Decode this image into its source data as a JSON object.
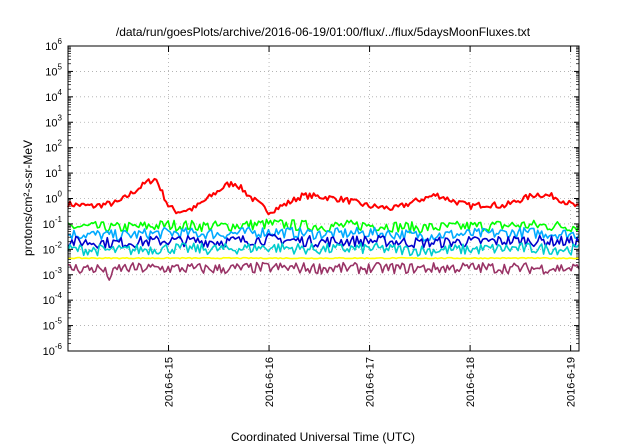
{
  "chart_data": {
    "type": "line",
    "title": "/data/run/goesPlots/archive/2016-06-19/01:00/flux/../flux/5daysMoonFluxes.txt",
    "xlabel": "Coordinated Universal Time (UTC)",
    "ylabel": "protons/cm²-s-sr-MeV",
    "yscale": "log",
    "ylim": [
      1e-06,
      1000000.0
    ],
    "xlim": [
      "2016-06-14 00:00",
      "2016-06-19 02:00"
    ],
    "y_ticks": [
      {
        "mantissa": "10",
        "exp": "-6"
      },
      {
        "mantissa": "10",
        "exp": "-5"
      },
      {
        "mantissa": "10",
        "exp": "-4"
      },
      {
        "mantissa": "10",
        "exp": "-3"
      },
      {
        "mantissa": "10",
        "exp": "-2"
      },
      {
        "mantissa": "10",
        "exp": "-1"
      },
      {
        "mantissa": "10",
        "exp": "0"
      },
      {
        "mantissa": "10",
        "exp": "1"
      },
      {
        "mantissa": "10",
        "exp": "2"
      },
      {
        "mantissa": "10",
        "exp": "3"
      },
      {
        "mantissa": "10",
        "exp": "4"
      },
      {
        "mantissa": "10",
        "exp": "5"
      },
      {
        "mantissa": "10",
        "exp": "6"
      }
    ],
    "x_ticks": [
      {
        "label": "2016-6-15",
        "date": "2016-06-15"
      },
      {
        "label": "2016-6-16",
        "date": "2016-06-16"
      },
      {
        "label": "2016-6-17",
        "date": "2016-06-17"
      },
      {
        "label": "2016-6-18",
        "date": "2016-06-18"
      },
      {
        "label": "2016-6-19",
        "date": "2016-06-19"
      }
    ],
    "grid": true,
    "legend": "none",
    "series": [
      {
        "color": "#ff0000",
        "x": [
          "2016-06-14 00:00",
          "2016-06-14 06:00",
          "2016-06-14 12:00",
          "2016-06-14 16:00",
          "2016-06-14 19:00",
          "2016-06-14 21:00",
          "2016-06-15 00:00",
          "2016-06-15 02:00",
          "2016-06-15 06:00",
          "2016-06-15 10:00",
          "2016-06-15 14:00",
          "2016-06-15 16:00",
          "2016-06-15 20:00",
          "2016-06-16 00:00",
          "2016-06-16 04:00",
          "2016-06-16 08:00",
          "2016-06-16 12:00",
          "2016-06-16 18:00",
          "2016-06-17 00:00",
          "2016-06-17 06:00",
          "2016-06-17 12:00",
          "2016-06-17 16:00",
          "2016-06-17 20:00",
          "2016-06-18 00:00",
          "2016-06-18 04:00",
          "2016-06-18 08:00",
          "2016-06-18 12:00",
          "2016-06-18 16:00",
          "2016-06-18 20:00",
          "2016-06-19 00:00",
          "2016-06-19 02:00"
        ],
        "y": [
          0.6,
          0.5,
          0.7,
          2.0,
          4.5,
          6.0,
          0.5,
          0.3,
          0.4,
          1.2,
          3.5,
          4.0,
          1.0,
          0.3,
          0.6,
          1.3,
          1.2,
          0.9,
          0.5,
          0.4,
          0.9,
          1.4,
          0.8,
          0.5,
          0.6,
          0.5,
          0.9,
          1.5,
          1.2,
          0.6,
          0.45
        ]
      },
      {
        "color": "#00ff00",
        "x": [
          "2016-06-14 00:00",
          "2016-06-14 12:00",
          "2016-06-15 00:00",
          "2016-06-15 12:00",
          "2016-06-16 00:00",
          "2016-06-16 12:00",
          "2016-06-17 00:00",
          "2016-06-17 12:00",
          "2016-06-18 00:00",
          "2016-06-18 12:00",
          "2016-06-19 00:00",
          "2016-06-19 02:00"
        ],
        "y": [
          0.08,
          0.07,
          0.09,
          0.08,
          0.1,
          0.08,
          0.09,
          0.07,
          0.08,
          0.09,
          0.08,
          0.08
        ]
      },
      {
        "color": "#00aaff",
        "x": [
          "2016-06-14 00:00",
          "2016-06-14 12:00",
          "2016-06-15 00:00",
          "2016-06-15 12:00",
          "2016-06-16 00:00",
          "2016-06-16 12:00",
          "2016-06-17 00:00",
          "2016-06-17 12:00",
          "2016-06-18 00:00",
          "2016-06-18 12:00",
          "2016-06-19 00:00",
          "2016-06-19 02:00"
        ],
        "y": [
          0.04,
          0.035,
          0.045,
          0.04,
          0.05,
          0.04,
          0.045,
          0.035,
          0.04,
          0.045,
          0.04,
          0.04
        ]
      },
      {
        "color": "#0000cc",
        "x": [
          "2016-06-14 00:00",
          "2016-06-14 12:00",
          "2016-06-15 00:00",
          "2016-06-15 12:00",
          "2016-06-16 00:00",
          "2016-06-16 12:00",
          "2016-06-17 00:00",
          "2016-06-17 12:00",
          "2016-06-18 00:00",
          "2016-06-18 12:00",
          "2016-06-19 00:00",
          "2016-06-19 02:00"
        ],
        "y": [
          0.02,
          0.018,
          0.022,
          0.02,
          0.025,
          0.02,
          0.022,
          0.018,
          0.02,
          0.022,
          0.02,
          0.02
        ]
      },
      {
        "color": "#00cccc",
        "x": [
          "2016-06-14 00:00",
          "2016-06-14 12:00",
          "2016-06-15 00:00",
          "2016-06-15 12:00",
          "2016-06-16 00:00",
          "2016-06-16 12:00",
          "2016-06-17 00:00",
          "2016-06-17 12:00",
          "2016-06-18 00:00",
          "2016-06-18 12:00",
          "2016-06-19 00:00",
          "2016-06-19 02:00"
        ],
        "y": [
          0.01,
          0.009,
          0.011,
          0.01,
          0.012,
          0.01,
          0.011,
          0.009,
          0.01,
          0.011,
          0.01,
          0.01
        ]
      },
      {
        "color": "#ffff00",
        "x": [
          "2016-06-14 00:00",
          "2016-06-15 00:00",
          "2016-06-16 00:00",
          "2016-06-17 00:00",
          "2016-06-18 00:00",
          "2016-06-19 00:00",
          "2016-06-19 02:00"
        ],
        "y": [
          0.0045,
          0.0045,
          0.0045,
          0.0045,
          0.0045,
          0.0045,
          0.0045
        ]
      },
      {
        "color": "#993366",
        "x": [
          "2016-06-14 00:00",
          "2016-06-14 08:00",
          "2016-06-14 10:00",
          "2016-06-14 12:00",
          "2016-06-15 00:00",
          "2016-06-15 12:00",
          "2016-06-16 00:00",
          "2016-06-16 12:00",
          "2016-06-17 00:00",
          "2016-06-17 12:00",
          "2016-06-18 00:00",
          "2016-06-18 12:00",
          "2016-06-19 00:00",
          "2016-06-19 02:00"
        ],
        "y": [
          0.0018,
          0.0017,
          0.0008,
          0.0018,
          0.0018,
          0.0017,
          0.0019,
          0.0018,
          0.0018,
          0.0018,
          0.0019,
          0.0018,
          0.0018,
          0.0018
        ]
      }
    ]
  }
}
